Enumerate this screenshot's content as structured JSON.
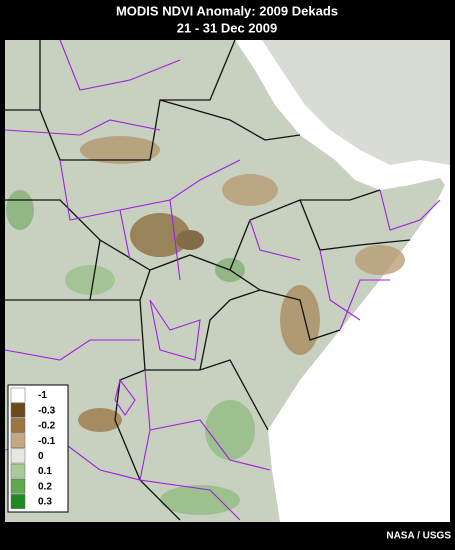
{
  "header": {
    "title": "MODIS NDVI Anomaly: 2009 Dekads",
    "subtitle": "21 - 31 Dec 2009"
  },
  "legend": {
    "items": [
      {
        "label": "-1",
        "color": "#ffffff"
      },
      {
        "label": "-0.3",
        "color": "#6b4a1e"
      },
      {
        "label": "-0.2",
        "color": "#9a7640"
      },
      {
        "label": "-0.1",
        "color": "#c4a882"
      },
      {
        "label": "0",
        "color": "#e6e8e0"
      },
      {
        "label": "0.1",
        "color": "#a8c896"
      },
      {
        "label": "0.2",
        "color": "#5fa84e"
      },
      {
        "label": "0.3",
        "color": "#1f8a1f"
      }
    ]
  },
  "credit": "NASA / USGS"
}
